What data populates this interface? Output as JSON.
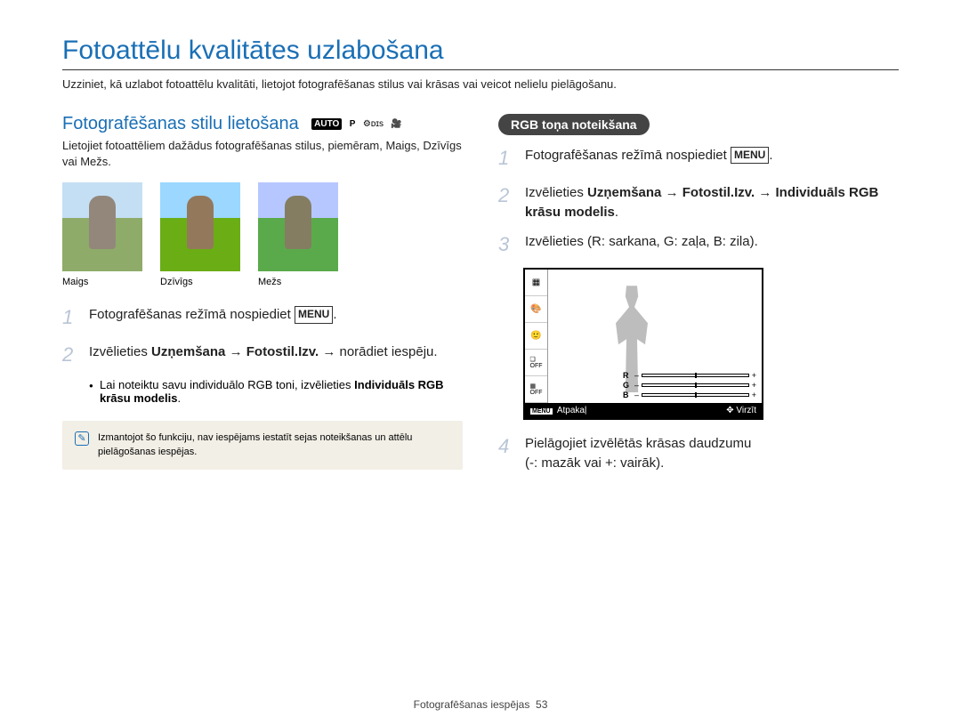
{
  "title": "Fotoattēlu kvalitātes uzlabošana",
  "intro": "Uzziniet, kā uzlabot fotoattēlu kvalitāti, lietojot fotografēšanas stilus vai krāsas vai veicot nelielu pielāgošanu.",
  "left": {
    "heading": "Fotografēšanas stilu lietošana",
    "mode_auto": "AUTO",
    "mode_p": "P",
    "mode_ois": "⚙ᴅɪs",
    "mode_video": "🎥",
    "desc": "Lietojiet fotoattēliem dažādus fotografēšanas stilus, piemēram, Maigs, Dzīvīgs vai Mežs.",
    "thumbs": [
      {
        "label": "Maigs"
      },
      {
        "label": "Dzīvīgs"
      },
      {
        "label": "Mežs"
      }
    ],
    "step1": "Fotografēšanas režīmā nospiediet ",
    "menu": "MENU",
    "step2_pre": "Izvēlieties ",
    "step2_b1": "Uzņemšana",
    "step2_arrow": " → ",
    "step2_b2": "Fotostil.Izv.",
    "step2_post": " → norādiet iespēju.",
    "bullet_pre": "Lai noteiktu savu individuālo RGB toni, izvēlieties ",
    "bullet_b": "Individuāls RGB krāsu modelis",
    "bullet_post": ".",
    "note": "Izmantojot šo funkciju, nav iespējams iestatīt sejas noteikšanas un attēlu pielāgošanas iespējas."
  },
  "right": {
    "pill": "RGB toņa noteikšana",
    "step1": "Fotografēšanas režīmā nospiediet ",
    "menu": "MENU",
    "step2_pre": "Izvēlieties ",
    "step2_b1": "Uzņemšana",
    "step2_arrow1": " → ",
    "step2_b2": "Fotostil.Izv.",
    "step2_arrow2": " → ",
    "step2_b3": "Individuāls RGB krāsu modelis",
    "step2_post": ".",
    "step3": "Izvēlieties (R: sarkana, G: zaļa, B: zila).",
    "lcd": {
      "back_label": "Atpakaļ",
      "move_label": "Virzīt",
      "menu": "MENU",
      "r": "R",
      "g": "G",
      "b": "B",
      "minus": "–",
      "plus": "+"
    },
    "step4": "Pielāgojiet izvēlētās krāsas daudzumu\n(-: mazāk vai +: vairāk)."
  },
  "footer": {
    "label": "Fotografēšanas iespējas",
    "page": "53"
  }
}
